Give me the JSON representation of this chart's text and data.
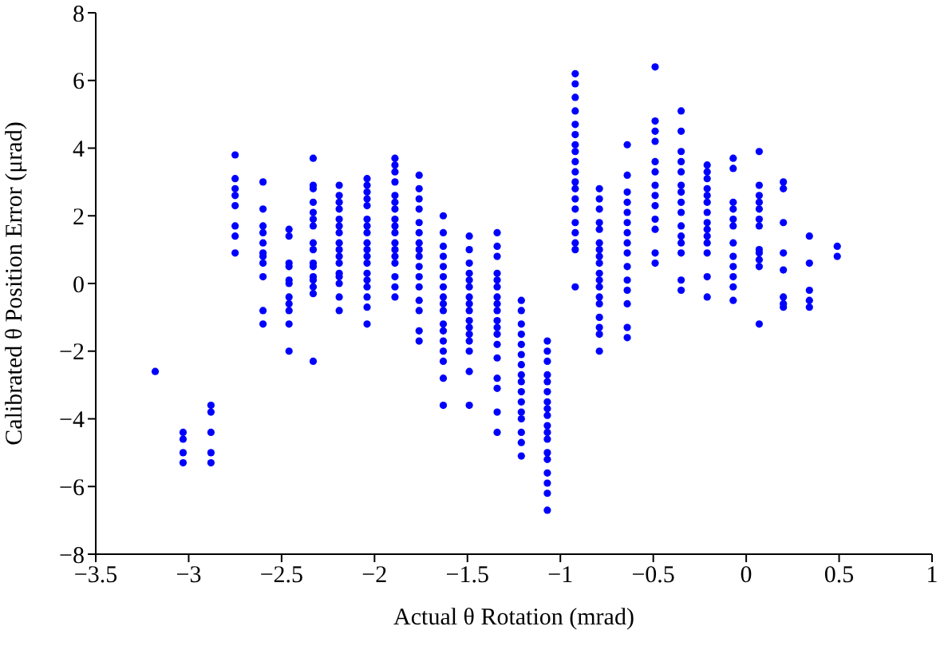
{
  "chart_data": {
    "type": "scatter",
    "xlabel": "Actual θ Rotation (mrad)",
    "ylabel": "Calibrated θ Position Error (μrad)",
    "xlim": [
      -3.5,
      1
    ],
    "xticks": [
      -3.5,
      -3,
      -2.5,
      -2,
      -1.5,
      -1,
      -0.5,
      0,
      0.5,
      1
    ],
    "ylim": [
      -8,
      8
    ],
    "yticks": [
      -8,
      -6,
      -4,
      -2,
      0,
      2,
      4,
      6,
      8
    ],
    "grid": false,
    "legend": false,
    "marker": "circle",
    "series": [
      {
        "color": "#0000ff",
        "x": [
          -3.18,
          -3.03,
          -3.03,
          -3.03,
          -3.03,
          -2.88,
          -2.88,
          -2.88,
          -2.88,
          -2.88,
          -2.75,
          -2.75,
          -2.75,
          -2.75,
          -2.75,
          -2.75,
          -2.75,
          -2.75,
          -2.6,
          -2.6,
          -2.6,
          -2.6,
          -2.6,
          -2.6,
          -2.6,
          -2.6,
          -2.6,
          -2.6,
          -2.6,
          -2.46,
          -2.46,
          -2.46,
          -2.46,
          -2.46,
          -2.46,
          -2.46,
          -2.46,
          -2.46,
          -2.46,
          -2.46,
          -2.33,
          -2.33,
          -2.33,
          -2.33,
          -2.33,
          -2.33,
          -2.33,
          -2.33,
          -2.33,
          -2.33,
          -2.33,
          -2.33,
          -2.33,
          -2.33,
          -2.33,
          -2.33,
          -2.19,
          -2.19,
          -2.19,
          -2.19,
          -2.19,
          -2.19,
          -2.19,
          -2.19,
          -2.19,
          -2.19,
          -2.19,
          -2.19,
          -2.19,
          -2.19,
          -2.19,
          -2.19,
          -2.04,
          -2.04,
          -2.04,
          -2.04,
          -2.04,
          -2.04,
          -2.04,
          -2.04,
          -2.04,
          -2.04,
          -2.04,
          -2.04,
          -2.04,
          -2.04,
          -2.04,
          -2.04,
          -2.04,
          -2.04,
          -1.89,
          -1.89,
          -1.89,
          -1.89,
          -1.89,
          -1.89,
          -1.89,
          -1.89,
          -1.89,
          -1.89,
          -1.89,
          -1.89,
          -1.89,
          -1.89,
          -1.89,
          -1.89,
          -1.89,
          -1.76,
          -1.76,
          -1.76,
          -1.76,
          -1.76,
          -1.76,
          -1.76,
          -1.76,
          -1.76,
          -1.76,
          -1.76,
          -1.76,
          -1.76,
          -1.76,
          -1.76,
          -1.76,
          -1.63,
          -1.63,
          -1.63,
          -1.63,
          -1.63,
          -1.63,
          -1.63,
          -1.63,
          -1.63,
          -1.63,
          -1.63,
          -1.63,
          -1.63,
          -1.63,
          -1.63,
          -1.63,
          -1.63,
          -1.49,
          -1.49,
          -1.49,
          -1.49,
          -1.49,
          -1.49,
          -1.49,
          -1.49,
          -1.49,
          -1.49,
          -1.49,
          -1.49,
          -1.49,
          -1.49,
          -1.49,
          -1.49,
          -1.34,
          -1.34,
          -1.34,
          -1.34,
          -1.34,
          -1.34,
          -1.34,
          -1.34,
          -1.34,
          -1.34,
          -1.34,
          -1.34,
          -1.34,
          -1.34,
          -1.34,
          -1.34,
          -1.34,
          -1.34,
          -1.21,
          -1.21,
          -1.21,
          -1.21,
          -1.21,
          -1.21,
          -1.21,
          -1.21,
          -1.21,
          -1.21,
          -1.21,
          -1.21,
          -1.21,
          -1.21,
          -1.21,
          -1.21,
          -1.07,
          -1.07,
          -1.07,
          -1.07,
          -1.07,
          -1.07,
          -1.07,
          -1.07,
          -1.07,
          -1.07,
          -1.07,
          -1.07,
          -1.07,
          -1.07,
          -1.07,
          -1.07,
          -1.07,
          -1.07,
          -0.92,
          -0.92,
          -0.92,
          -0.92,
          -0.92,
          -0.92,
          -0.92,
          -0.92,
          -0.92,
          -0.92,
          -0.92,
          -0.92,
          -0.92,
          -0.92,
          -0.92,
          -0.92,
          -0.92,
          -0.92,
          -0.92,
          -0.79,
          -0.79,
          -0.79,
          -0.79,
          -0.79,
          -0.79,
          -0.79,
          -0.79,
          -0.79,
          -0.79,
          -0.79,
          -0.79,
          -0.79,
          -0.79,
          -0.79,
          -0.79,
          -0.79,
          -0.79,
          -0.64,
          -0.64,
          -0.64,
          -0.64,
          -0.64,
          -0.64,
          -0.64,
          -0.64,
          -0.64,
          -0.64,
          -0.64,
          -0.64,
          -0.64,
          -0.64,
          -0.64,
          -0.49,
          -0.49,
          -0.49,
          -0.49,
          -0.49,
          -0.49,
          -0.49,
          -0.49,
          -0.49,
          -0.49,
          -0.49,
          -0.49,
          -0.49,
          -0.35,
          -0.35,
          -0.35,
          -0.35,
          -0.35,
          -0.35,
          -0.35,
          -0.35,
          -0.35,
          -0.35,
          -0.35,
          -0.35,
          -0.35,
          -0.35,
          -0.35,
          -0.21,
          -0.21,
          -0.21,
          -0.21,
          -0.21,
          -0.21,
          -0.21,
          -0.21,
          -0.21,
          -0.21,
          -0.21,
          -0.21,
          -0.21,
          -0.21,
          -0.07,
          -0.07,
          -0.07,
          -0.07,
          -0.07,
          -0.07,
          -0.07,
          -0.07,
          -0.07,
          -0.07,
          -0.07,
          -0.07,
          0.07,
          0.07,
          0.07,
          0.07,
          0.07,
          0.07,
          0.07,
          0.07,
          0.07,
          0.07,
          0.07,
          0.07,
          0.2,
          0.2,
          0.2,
          0.2,
          0.2,
          0.2,
          0.2,
          0.2,
          0.34,
          0.34,
          0.34,
          0.34,
          0.34,
          0.49,
          0.49
        ],
        "values": [
          -2.6,
          -4.4,
          -4.6,
          -5.0,
          -5.3,
          -3.6,
          -3.8,
          -4.4,
          -5.0,
          -5.3,
          3.8,
          3.1,
          2.8,
          2.6,
          2.3,
          1.7,
          1.4,
          0.9,
          3.0,
          2.2,
          1.7,
          1.5,
          1.2,
          0.9,
          0.8,
          0.6,
          0.2,
          -0.8,
          -1.2,
          1.6,
          1.4,
          0.6,
          0.5,
          0.1,
          0.0,
          -0.4,
          -0.6,
          -0.8,
          -1.2,
          -2.0,
          3.7,
          2.9,
          2.8,
          2.4,
          2.1,
          1.9,
          1.7,
          1.2,
          1.0,
          0.6,
          0.5,
          0.2,
          0.1,
          -0.1,
          -0.3,
          -2.3,
          2.9,
          2.6,
          2.4,
          2.2,
          1.9,
          1.7,
          1.5,
          1.2,
          1.0,
          0.8,
          0.6,
          0.3,
          0.2,
          0.0,
          -0.4,
          -0.8,
          3.1,
          2.9,
          2.7,
          2.5,
          2.3,
          1.9,
          1.7,
          1.5,
          1.2,
          1.0,
          0.8,
          0.6,
          0.3,
          0.1,
          -0.1,
          -0.4,
          -0.7,
          -1.2,
          3.7,
          3.5,
          3.3,
          3.0,
          2.6,
          2.4,
          2.2,
          1.9,
          1.7,
          1.5,
          1.2,
          1.0,
          0.8,
          0.6,
          0.2,
          -0.1,
          -0.4,
          3.2,
          2.8,
          2.5,
          2.2,
          1.8,
          1.5,
          1.2,
          1.0,
          0.8,
          0.5,
          0.2,
          -0.1,
          -0.5,
          -0.8,
          -1.4,
          -1.7,
          2.0,
          1.5,
          1.1,
          0.8,
          0.5,
          0.2,
          -0.1,
          -0.4,
          -0.6,
          -0.8,
          -1.2,
          -1.4,
          -1.7,
          -2.0,
          -2.3,
          -2.8,
          -3.6,
          1.4,
          1.0,
          0.6,
          0.3,
          0.1,
          -0.1,
          -0.4,
          -0.6,
          -0.8,
          -1.1,
          -1.3,
          -1.5,
          -1.7,
          -2.0,
          -2.6,
          -3.6,
          1.5,
          1.1,
          0.8,
          0.3,
          0.1,
          -0.1,
          -0.4,
          -0.6,
          -0.8,
          -1.1,
          -1.3,
          -1.5,
          -1.8,
          -2.2,
          -2.8,
          -3.1,
          -3.8,
          -4.4,
          -0.5,
          -0.8,
          -1.2,
          -1.5,
          -1.8,
          -2.1,
          -2.4,
          -2.7,
          -2.9,
          -3.2,
          -3.5,
          -3.8,
          -4.0,
          -4.4,
          -4.7,
          -5.1,
          -1.7,
          -2.0,
          -2.3,
          -2.7,
          -2.9,
          -3.2,
          -3.5,
          -3.7,
          -3.9,
          -4.2,
          -4.4,
          -4.6,
          -5.0,
          -5.2,
          -5.6,
          -5.9,
          -6.2,
          -6.7,
          6.2,
          5.9,
          5.5,
          5.1,
          4.7,
          4.4,
          4.1,
          3.9,
          3.6,
          3.3,
          3.0,
          2.8,
          2.5,
          2.2,
          1.8,
          1.5,
          1.2,
          1.0,
          -0.1,
          2.8,
          2.5,
          2.2,
          1.8,
          1.6,
          1.2,
          1.0,
          0.8,
          0.6,
          0.3,
          0.1,
          -0.1,
          -0.4,
          -0.6,
          -1.0,
          -1.3,
          -1.5,
          -2.0,
          4.1,
          3.2,
          2.7,
          2.4,
          2.1,
          1.8,
          1.5,
          1.2,
          0.9,
          0.5,
          0.1,
          -0.2,
          -0.6,
          -1.3,
          -1.6,
          6.4,
          4.8,
          4.5,
          4.2,
          3.6,
          3.3,
          2.9,
          2.6,
          2.3,
          1.9,
          1.6,
          0.9,
          0.6,
          5.1,
          4.5,
          3.9,
          3.6,
          3.3,
          2.9,
          2.7,
          2.4,
          2.1,
          1.7,
          1.4,
          1.2,
          0.9,
          0.1,
          -0.2,
          3.5,
          3.3,
          3.1,
          2.8,
          2.6,
          2.4,
          2.1,
          1.8,
          1.6,
          1.4,
          1.2,
          0.9,
          0.2,
          -0.4,
          3.7,
          3.4,
          2.4,
          2.2,
          1.9,
          1.7,
          1.2,
          0.8,
          0.5,
          0.2,
          -0.1,
          -0.5,
          3.9,
          2.9,
          2.6,
          2.4,
          2.2,
          1.9,
          1.7,
          1.0,
          0.9,
          0.7,
          0.5,
          -1.2,
          3.0,
          2.8,
          1.8,
          0.9,
          0.4,
          -0.4,
          -0.6,
          -0.7,
          1.4,
          0.6,
          -0.2,
          -0.5,
          -0.7,
          1.1,
          0.8
        ]
      }
    ]
  }
}
